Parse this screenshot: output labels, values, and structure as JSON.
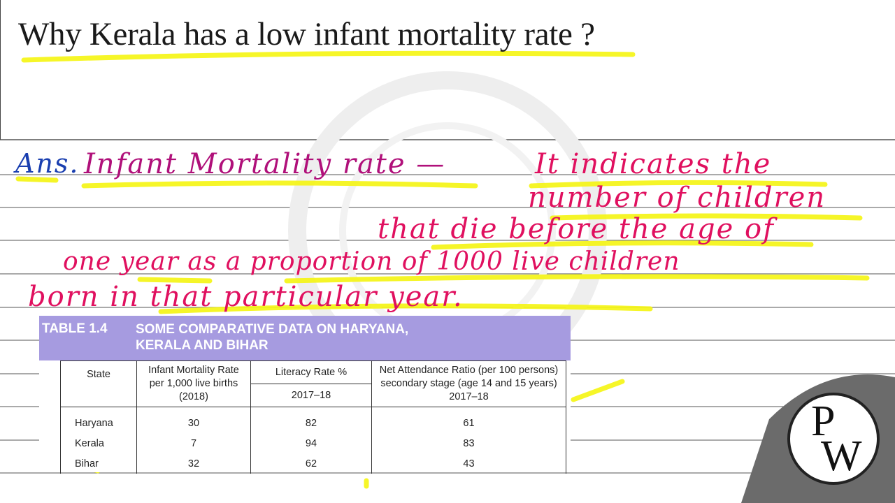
{
  "question": "Why Kerala has a low infant mortality rate ?",
  "answer": {
    "prefix": "Ans.",
    "term": "Infant Mortality rate —",
    "lines": [
      "It indicates the",
      "number of children",
      "that die before the age of",
      "one year as a proportion of 1000 live children",
      "born in that particular year."
    ]
  },
  "table": {
    "label": "TABLE 1.4",
    "title": "SOME COMPARATIVE DATA ON HARYANA, KERALA  AND BIHAR",
    "headers": {
      "state": "State",
      "imr": "Infant Mortality Rate per 1,000 live births (2018)",
      "literacy": "Literacy Rate %",
      "literacy_year": "2017–18",
      "nar": "Net Attendance Ratio (per 100 persons) secondary stage (age 14 and 15 years) 2017–18"
    },
    "rows": [
      {
        "state": "Haryana",
        "imr": "30",
        "literacy": "82",
        "nar": "61"
      },
      {
        "state": "Kerala",
        "imr": "7",
        "literacy": "94",
        "nar": "83"
      },
      {
        "state": "Bihar",
        "imr": "32",
        "literacy": "62",
        "nar": "43"
      }
    ]
  },
  "logo": {
    "top": "P",
    "bottom": "W"
  },
  "colors": {
    "highlight": "#f5f516",
    "ink": "#e0105f",
    "table_header": "#a69be0"
  }
}
